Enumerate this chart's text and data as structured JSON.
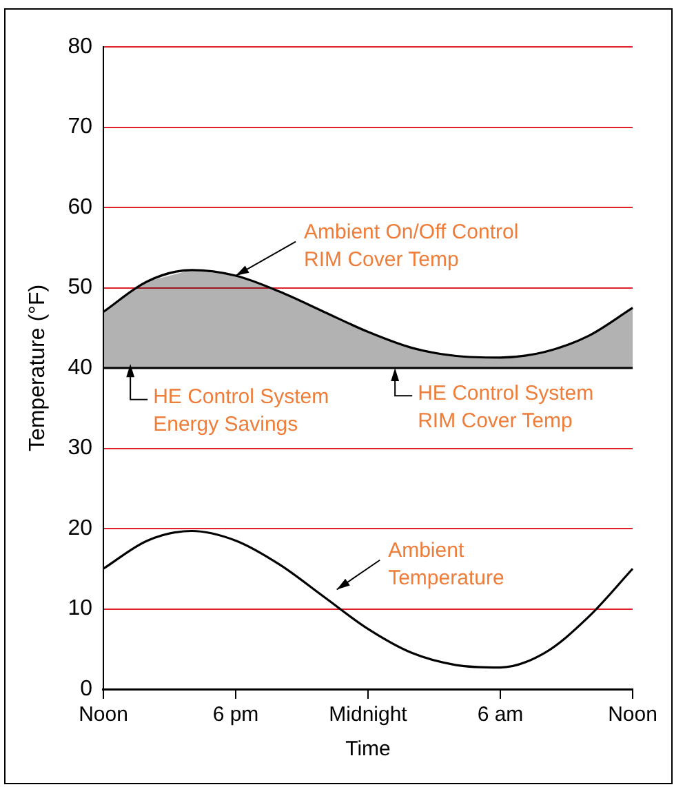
{
  "chart_data": {
    "type": "line",
    "xlabel": "Time",
    "ylabel": "Temperature (°F)",
    "categories": [
      "Noon",
      null,
      null,
      "6 pm",
      null,
      null,
      "Midnight",
      null,
      null,
      "6 am",
      null,
      null,
      "Noon"
    ],
    "ylim": [
      0,
      80
    ],
    "yticks": [
      0,
      10,
      20,
      30,
      40,
      50,
      60,
      70,
      80
    ],
    "series": [
      {
        "color": "#000000",
        "values": [
          15,
          18.5,
          19.7,
          18.5,
          15.5,
          11.5,
          7.5,
          4.5,
          3,
          2.7,
          4.5,
          9,
          15
        ]
      },
      {
        "color": "#000000",
        "values": [
          47,
          50.8,
          52.2,
          51.5,
          49.5,
          47,
          44.5,
          42.5,
          41.5,
          41.3,
          42,
          44,
          47.5
        ],
        "lower": [
          40,
          40,
          40,
          40,
          40,
          40,
          40,
          40,
          40,
          40,
          40,
          40,
          40
        ],
        "upper": [
          47,
          50.8,
          52.2,
          51.5,
          49.5,
          47,
          44.5,
          42.5,
          41.5,
          41.3,
          42,
          44,
          47.5
        ]
      },
      {
        "color": "#000000",
        "values": [
          40,
          40,
          40,
          40,
          40,
          40,
          40,
          40,
          40,
          40,
          40,
          40,
          40
        ]
      }
    ],
    "annotations": [
      {
        "text": "Ambient On/Off Control\nRIM Cover Temp",
        "x": "6 pm",
        "y": 51.5
      },
      {
        "text": "HE Control System\nEnergy Savings",
        "y": 40.5
      },
      {
        "text": "HE Control System\nRIM Cover Temp",
        "y": 40
      },
      "Ambient\nTemperature"
    ],
    "grid": "y",
    "legend": false,
    "marker": "none",
    "line_style": "solid"
  }
}
